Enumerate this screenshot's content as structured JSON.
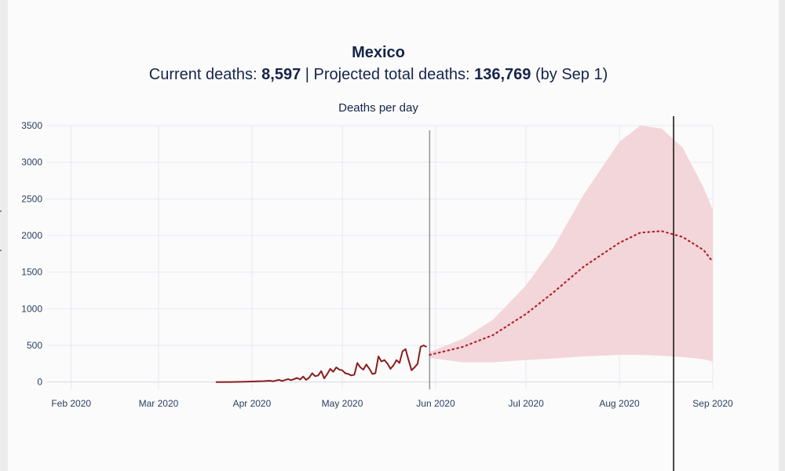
{
  "page": {
    "top_cut_text": "",
    "title": "Mexico",
    "subtitle": {
      "current_label": "Current deaths: ",
      "current_value": "8,597",
      "separator": " | Projected total deaths: ",
      "projected_value": "136,769",
      "suffix": " (by Sep 1)"
    }
  },
  "colors": {
    "observed": "#8a1d1d",
    "projection": "#b3222a",
    "band": "#f3d6da",
    "grid": "#e6e9f2",
    "marker": "#9a9a9a",
    "today_line": "#1a1a1a"
  },
  "chart_data": {
    "type": "line",
    "title": "Deaths per day",
    "xlabel": "",
    "ylabel": "",
    "x_tick_labels": [
      "Feb 2020",
      "Mar 2020",
      "Apr 2020",
      "May 2020",
      "Jun 2020",
      "Jul 2020",
      "Aug 2020",
      "Sep 2020"
    ],
    "x_tick_dates": [
      "2020-02-01",
      "2020-03-01",
      "2020-04-01",
      "2020-05-01",
      "2020-06-01",
      "2020-07-01",
      "2020-08-01",
      "2020-09-01"
    ],
    "y_ticks": [
      0,
      500,
      1000,
      1500,
      2000,
      2500,
      3000,
      3500
    ],
    "xlim": [
      "2020-01-24",
      "2020-09-01"
    ],
    "ylim": [
      -100,
      3500
    ],
    "grid": true,
    "vertical_markers": [
      {
        "date": "2020-05-30",
        "style": "gray"
      },
      {
        "date": "2020-08-19",
        "style": "black"
      }
    ],
    "series": [
      {
        "style": "solid",
        "x": [
          "2020-03-20",
          "2020-03-25",
          "2020-03-30",
          "2020-04-02",
          "2020-04-05",
          "2020-04-07",
          "2020-04-08",
          "2020-04-10",
          "2020-04-11",
          "2020-04-13",
          "2020-04-14",
          "2020-04-16",
          "2020-04-17",
          "2020-04-18",
          "2020-04-19",
          "2020-04-20",
          "2020-04-21",
          "2020-04-22",
          "2020-04-23",
          "2020-04-24",
          "2020-04-25",
          "2020-04-26",
          "2020-04-27",
          "2020-04-28",
          "2020-04-29",
          "2020-04-30",
          "2020-05-01",
          "2020-05-02",
          "2020-05-03",
          "2020-05-04",
          "2020-05-05",
          "2020-05-06",
          "2020-05-07",
          "2020-05-08",
          "2020-05-09",
          "2020-05-10",
          "2020-05-11",
          "2020-05-12",
          "2020-05-13",
          "2020-05-14",
          "2020-05-15",
          "2020-05-16",
          "2020-05-17",
          "2020-05-18",
          "2020-05-19",
          "2020-05-20",
          "2020-05-21",
          "2020-05-22",
          "2020-05-23",
          "2020-05-24",
          "2020-05-25",
          "2020-05-26",
          "2020-05-27",
          "2020-05-28",
          "2020-05-29"
        ],
        "y": [
          0,
          1,
          4,
          8,
          12,
          18,
          10,
          30,
          15,
          40,
          25,
          55,
          35,
          75,
          30,
          60,
          120,
          80,
          90,
          150,
          50,
          110,
          180,
          140,
          200,
          170,
          160,
          120,
          110,
          90,
          100,
          260,
          200,
          170,
          240,
          180,
          110,
          120,
          350,
          280,
          300,
          250,
          180,
          230,
          300,
          260,
          420,
          450,
          300,
          160,
          200,
          250,
          480,
          500,
          480
        ]
      },
      {
        "style": "dotted",
        "x": [
          "2020-05-30",
          "2020-06-10",
          "2020-06-20",
          "2020-07-01",
          "2020-07-10",
          "2020-07-20",
          "2020-08-01",
          "2020-08-08",
          "2020-08-15",
          "2020-08-22",
          "2020-08-29",
          "2020-09-01"
        ],
        "y": [
          370,
          480,
          640,
          930,
          1220,
          1570,
          1900,
          2040,
          2060,
          1980,
          1800,
          1640
        ]
      }
    ],
    "band": {
      "x": [
        "2020-05-30",
        "2020-06-10",
        "2020-06-20",
        "2020-07-01",
        "2020-07-10",
        "2020-07-20",
        "2020-08-01",
        "2020-08-08",
        "2020-08-15",
        "2020-08-22",
        "2020-08-29",
        "2020-09-01"
      ],
      "lower": [
        330,
        270,
        270,
        300,
        320,
        350,
        370,
        370,
        360,
        340,
        310,
        280
      ],
      "upper": [
        410,
        590,
        850,
        1320,
        1830,
        2550,
        3280,
        3500,
        3460,
        3200,
        2650,
        2350
      ]
    }
  }
}
